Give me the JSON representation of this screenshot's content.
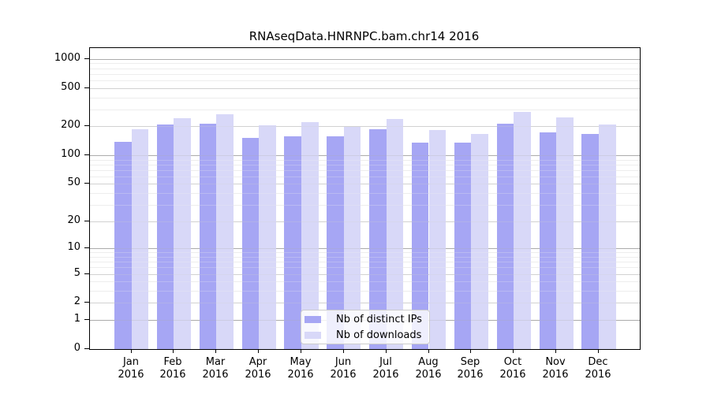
{
  "title": "RNAseqData.HNRNPC.bam.chr14 2016",
  "chart_data": {
    "type": "bar",
    "title": "RNAseqData.HNRNPC.bam.chr14 2016",
    "categories": [
      "Jan 2016",
      "Feb 2016",
      "Mar 2016",
      "Apr 2016",
      "May 2016",
      "Jun 2016",
      "Jul 2016",
      "Aug 2016",
      "Sep 2016",
      "Oct 2016",
      "Nov 2016",
      "Dec 2016"
    ],
    "series": [
      {
        "name": "Nb of distinct IPs",
        "color": "#a6a6f4",
        "values": [
          138,
          211,
          213,
          151,
          159,
          159,
          187,
          136,
          135,
          215,
          174,
          166
        ]
      },
      {
        "name": "Nb of downloads",
        "color": "#d8d8f8",
        "values": [
          188,
          244,
          268,
          207,
          220,
          198,
          239,
          184,
          167,
          283,
          248,
          210
        ]
      }
    ],
    "xlabel": "",
    "ylabel": "",
    "yscale": "log1p",
    "yticks": [
      0,
      1,
      2,
      5,
      10,
      20,
      50,
      100,
      200,
      500,
      1000
    ],
    "ylim": [
      0,
      1300
    ],
    "grid": true,
    "legend_position": "inside-bottom-center"
  },
  "colors": {
    "bar_ips": "#a6a6f4",
    "bar_downloads": "#d8d8f8",
    "grid_decade": "#ababab",
    "grid_ticked": "#d2d2d2",
    "grid_minor": "#ededed",
    "spine": "#000000",
    "legend_border": "#cccccc",
    "text": "#000000"
  }
}
